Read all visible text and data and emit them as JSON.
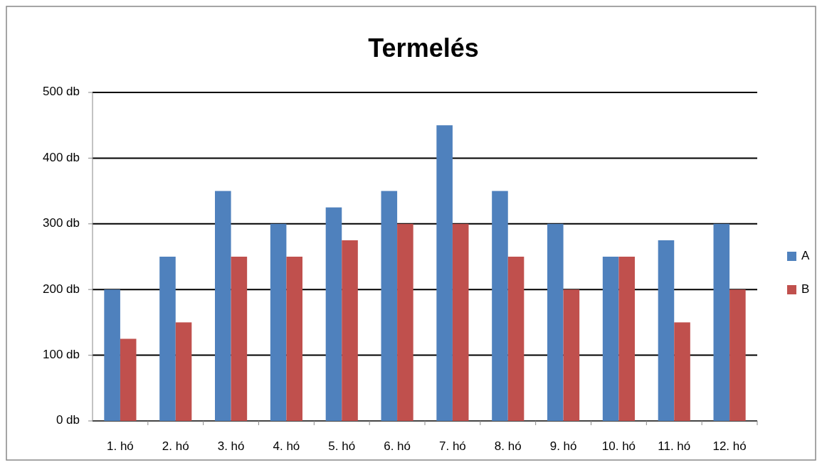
{
  "chart_data": {
    "type": "bar",
    "title": "Termelés",
    "categories": [
      "1. hó",
      "2. hó",
      "3. hó",
      "4. hó",
      "5. hó",
      "6. hó",
      "7. hó",
      "8. hó",
      "9. hó",
      "10. hó",
      "11. hó",
      "12. hó"
    ],
    "series": [
      {
        "name": "A",
        "color": "#4f81bd",
        "values": [
          200,
          250,
          350,
          300,
          325,
          350,
          450,
          350,
          300,
          250,
          275,
          300
        ]
      },
      {
        "name": "B",
        "color": "#c0504d",
        "values": [
          125,
          150,
          250,
          250,
          275,
          300,
          300,
          250,
          200,
          250,
          150,
          200
        ]
      }
    ],
    "ylim": [
      0,
      500
    ],
    "yticks": [
      {
        "value": 0,
        "label": "0 db"
      },
      {
        "value": 100,
        "label": "100 db"
      },
      {
        "value": 200,
        "label": "200 db"
      },
      {
        "value": 300,
        "label": "300 db"
      },
      {
        "value": 400,
        "label": "400 db"
      },
      {
        "value": 500,
        "label": "500 db"
      }
    ],
    "grid": "y",
    "legend": "right"
  }
}
